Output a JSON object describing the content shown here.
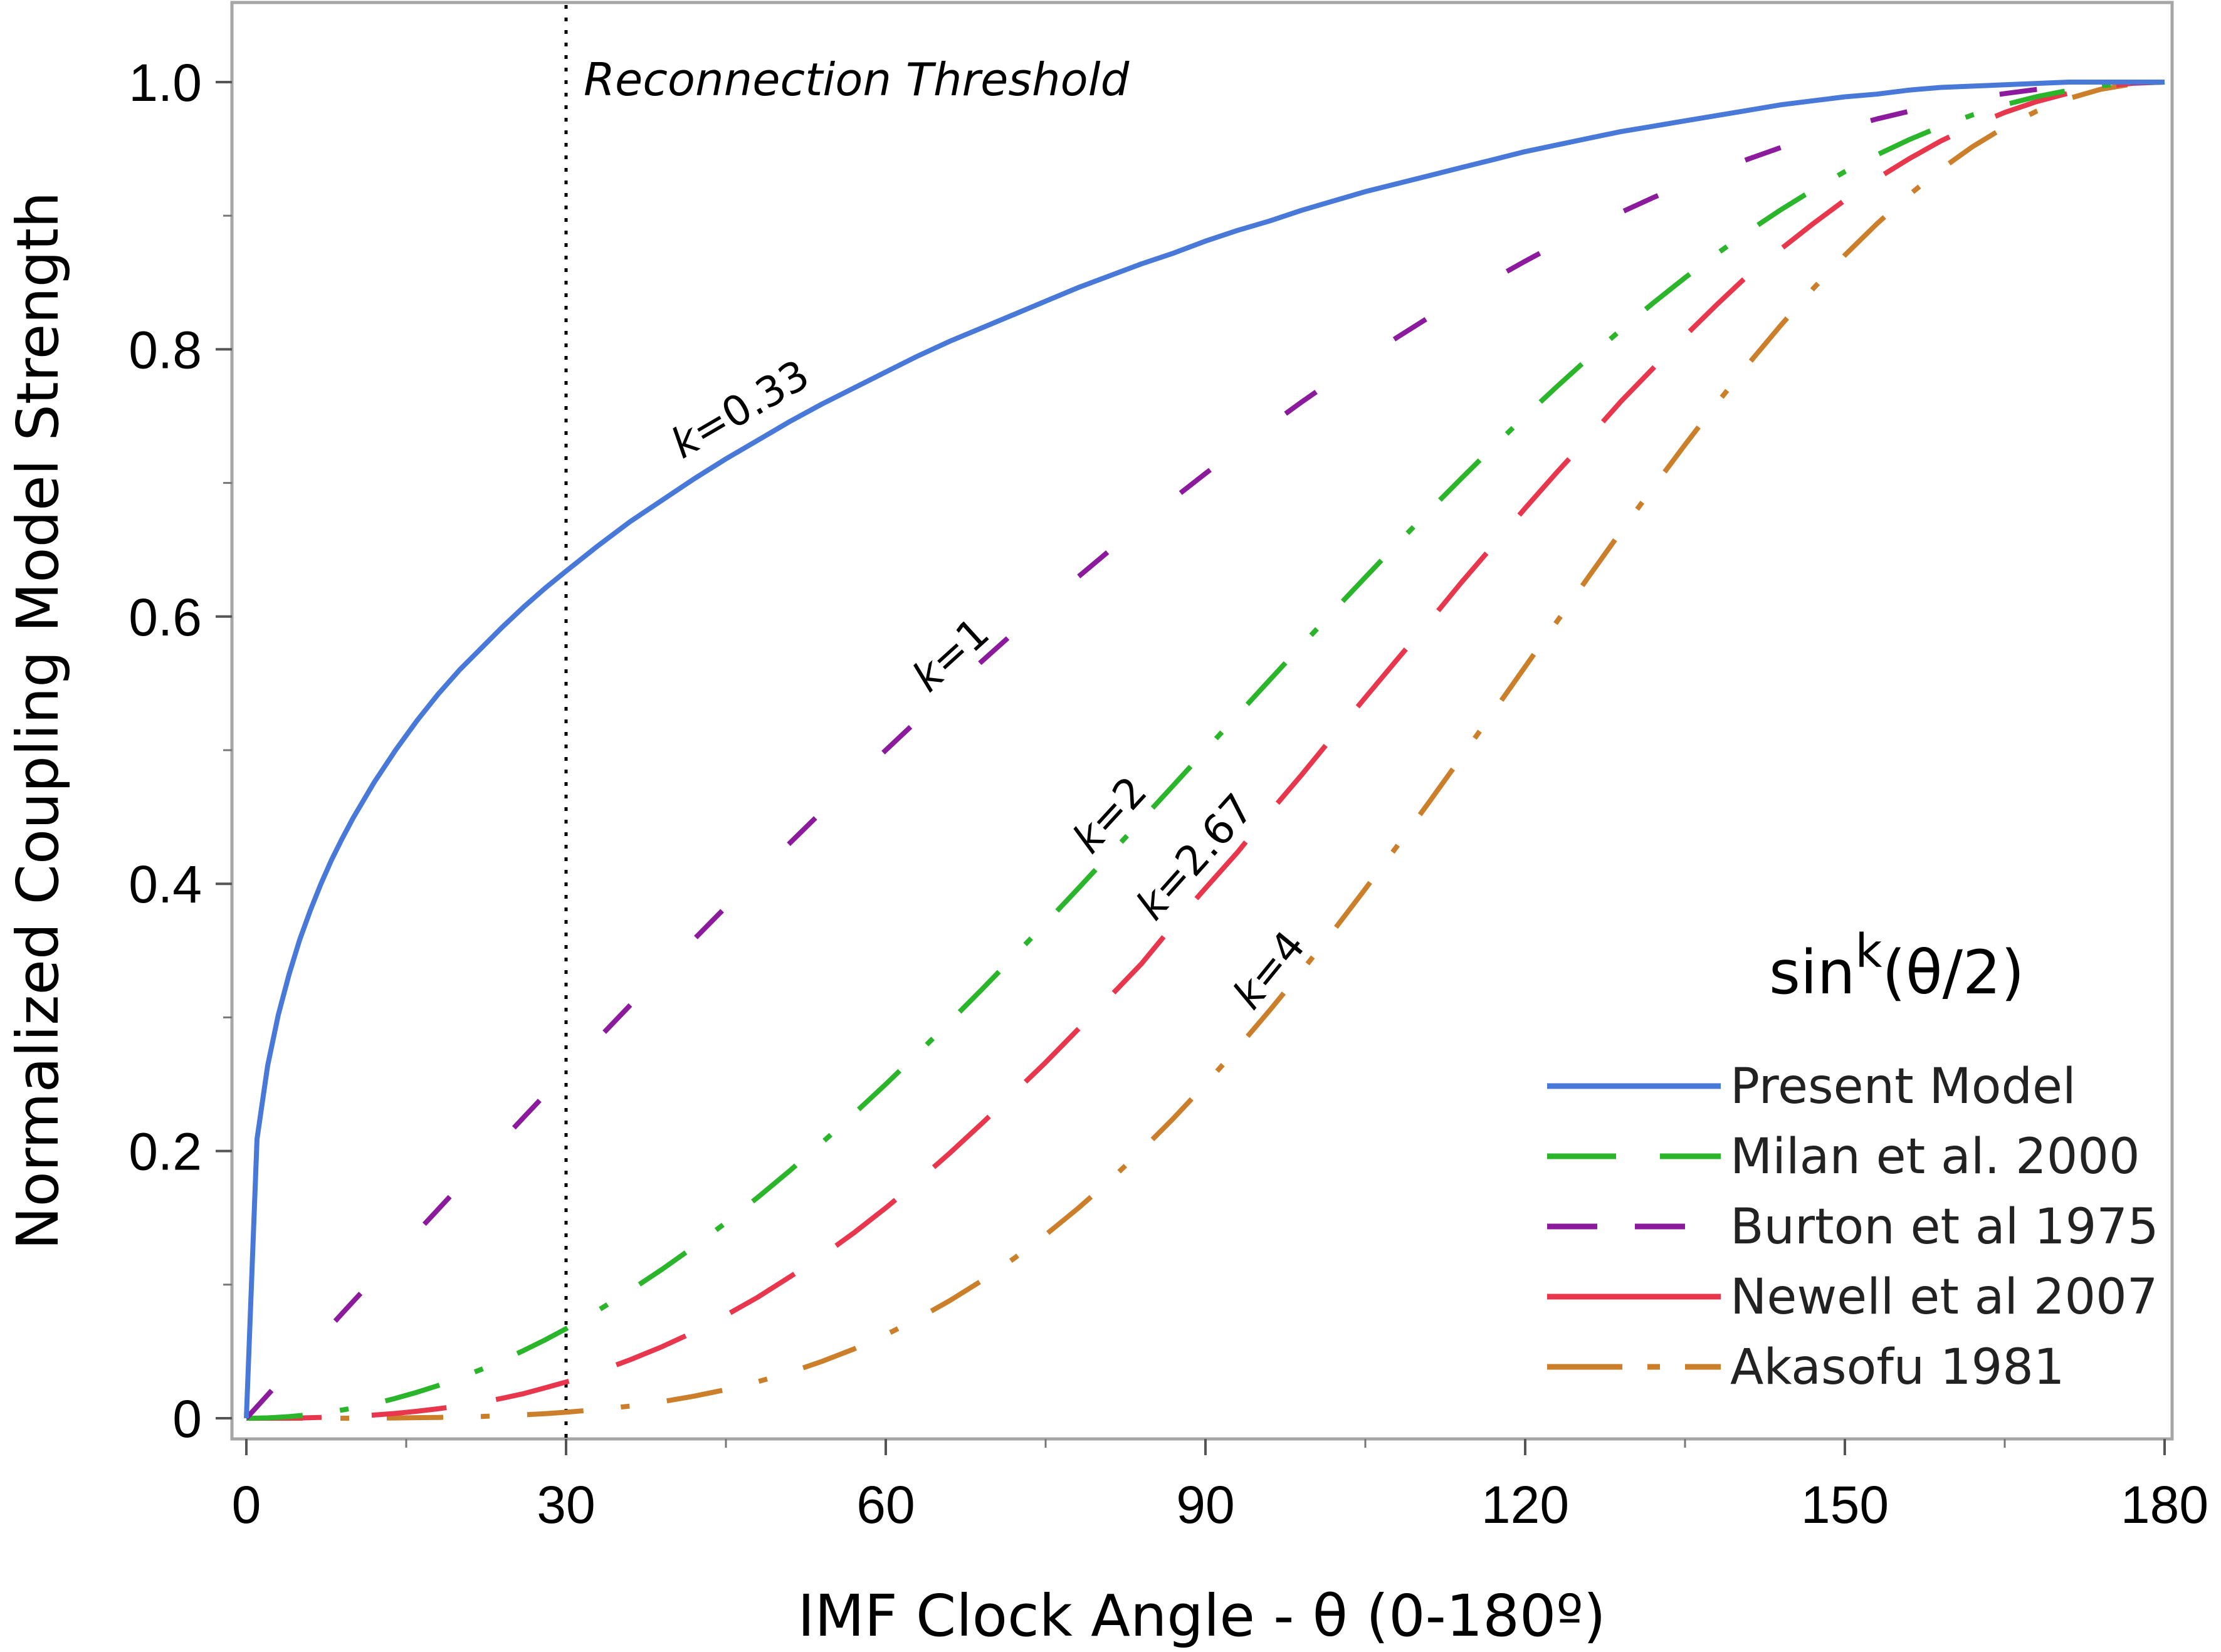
{
  "chart_data": {
    "type": "line",
    "xlabel": "IMF Clock Angle - θ (0-180º)",
    "ylabel": "Normalized Coupling Model Strength",
    "xlim": [
      0,
      180
    ],
    "ylim": [
      0,
      1.0
    ],
    "x_ticks": [
      "0",
      "30",
      "60",
      "90",
      "120",
      "150",
      "180"
    ],
    "y_ticks": [
      "0",
      "0.2",
      "0.4",
      "0.6",
      "0.8",
      "1.0"
    ],
    "grid": false,
    "legend": {
      "title_base": "sin",
      "title_superscript": "k",
      "title_tail": "(θ/2)",
      "position": "lower-right"
    },
    "annotation": {
      "text": "Reconnection Threshold",
      "x": 30
    },
    "x": [
      0,
      1,
      2,
      3,
      4,
      5,
      6,
      7,
      8,
      9,
      10,
      12,
      14,
      16,
      18,
      20,
      22,
      24,
      26,
      28,
      30,
      33,
      36,
      39,
      42,
      45,
      48,
      51,
      54,
      57,
      60,
      63,
      66,
      69,
      72,
      75,
      78,
      81,
      84,
      87,
      90,
      93,
      96,
      99,
      102,
      105,
      108,
      111,
      114,
      117,
      120,
      123,
      126,
      129,
      132,
      135,
      138,
      141,
      144,
      147,
      150,
      153,
      156,
      159,
      162,
      165,
      168,
      171,
      174,
      177,
      180
    ],
    "series": [
      {
        "name": "Present Model",
        "k": 0.33,
        "label": "k=0.33",
        "color": "#4878d8",
        "style": "solid",
        "values": [
          0,
          0.209,
          0.264,
          0.302,
          0.332,
          0.358,
          0.38,
          0.4,
          0.418,
          0.434,
          0.449,
          0.476,
          0.5,
          0.522,
          0.542,
          0.56,
          0.576,
          0.592,
          0.607,
          0.621,
          0.634,
          0.653,
          0.671,
          0.687,
          0.703,
          0.718,
          0.732,
          0.746,
          0.759,
          0.771,
          0.783,
          0.795,
          0.806,
          0.816,
          0.826,
          0.836,
          0.846,
          0.855,
          0.864,
          0.872,
          0.881,
          0.889,
          0.896,
          0.904,
          0.911,
          0.918,
          0.924,
          0.93,
          0.936,
          0.942,
          0.948,
          0.953,
          0.958,
          0.963,
          0.967,
          0.971,
          0.975,
          0.979,
          0.983,
          0.986,
          0.989,
          0.991,
          0.994,
          0.996,
          0.997,
          0.998,
          0.999,
          1.0,
          1.0,
          1.0,
          1.0
        ]
      },
      {
        "name": "Milan et al. 2000",
        "k": 2,
        "label": "k=2",
        "color": "#2ab52a",
        "style": "dash-dot",
        "values": [
          0,
          0.0001,
          0.0003,
          0.0007,
          0.0012,
          0.0019,
          0.0027,
          0.0037,
          0.0049,
          0.0062,
          0.0076,
          0.0109,
          0.0149,
          0.0194,
          0.0245,
          0.0302,
          0.0364,
          0.0432,
          0.0506,
          0.0585,
          0.067,
          0.0807,
          0.0955,
          0.1114,
          0.1284,
          0.1464,
          0.1654,
          0.1853,
          0.2061,
          0.2277,
          0.25,
          0.273,
          0.2967,
          0.3208,
          0.3455,
          0.3706,
          0.396,
          0.4217,
          0.4477,
          0.4738,
          0.5,
          0.5262,
          0.5523,
          0.5782,
          0.604,
          0.6294,
          0.6545,
          0.6792,
          0.7033,
          0.727,
          0.75,
          0.7723,
          0.7939,
          0.8147,
          0.8346,
          0.8536,
          0.8716,
          0.8886,
          0.9045,
          0.9193,
          0.933,
          0.9455,
          0.9568,
          0.9668,
          0.9755,
          0.983,
          0.9891,
          0.9938,
          0.9973,
          0.9993,
          1.0
        ]
      },
      {
        "name": "Burton et al 1975",
        "k": 1,
        "label": "k=1",
        "color": "#8b1a9c",
        "style": "dashed",
        "values": [
          0,
          0.0087,
          0.0175,
          0.0262,
          0.0349,
          0.0436,
          0.0523,
          0.061,
          0.0698,
          0.0785,
          0.0872,
          0.1045,
          0.1219,
          0.1392,
          0.1564,
          0.1736,
          0.1908,
          0.2079,
          0.225,
          0.2419,
          0.2588,
          0.284,
          0.309,
          0.3338,
          0.3584,
          0.3827,
          0.4067,
          0.4305,
          0.454,
          0.4772,
          0.5,
          0.5225,
          0.5446,
          0.5664,
          0.5878,
          0.6088,
          0.6293,
          0.6494,
          0.6691,
          0.6884,
          0.7071,
          0.7254,
          0.7431,
          0.7604,
          0.7771,
          0.7934,
          0.809,
          0.8241,
          0.8387,
          0.8526,
          0.866,
          0.8788,
          0.891,
          0.9026,
          0.9135,
          0.9239,
          0.9336,
          0.9426,
          0.9511,
          0.9588,
          0.9659,
          0.9724,
          0.9781,
          0.9833,
          0.9877,
          0.9914,
          0.9945,
          0.9969,
          0.9986,
          0.9997,
          1.0
        ]
      },
      {
        "name": "Newell et al 2007",
        "k": 2.67,
        "label": "k=2.67",
        "color": "#e8364c",
        "style": "long-dash",
        "values": [
          0,
          0.0,
          0.0,
          0.0001,
          0.0001,
          0.0002,
          0.0004,
          0.0006,
          0.0008,
          0.0011,
          0.0015,
          0.0024,
          0.0036,
          0.0052,
          0.0071,
          0.0093,
          0.0119,
          0.0149,
          0.0184,
          0.0227,
          0.0271,
          0.0348,
          0.0437,
          0.0535,
          0.0645,
          0.0771,
          0.0906,
          0.1058,
          0.1214,
          0.1387,
          0.1574,
          0.1774,
          0.1984,
          0.2205,
          0.2432,
          0.2663,
          0.2907,
          0.3153,
          0.3402,
          0.3693,
          0.3967,
          0.4235,
          0.4532,
          0.4813,
          0.5106,
          0.5394,
          0.568,
          0.5962,
          0.6254,
          0.6532,
          0.6811,
          0.7082,
          0.7342,
          0.7611,
          0.7858,
          0.8101,
          0.8336,
          0.8561,
          0.8751,
          0.8939,
          0.9117,
          0.9277,
          0.9425,
          0.9559,
          0.9673,
          0.9773,
          0.9854,
          0.9917,
          0.9964,
          0.9991,
          1.0
        ]
      },
      {
        "name": "Akasofu 1981",
        "k": 4,
        "label": "k=4",
        "color": "#cc7f2a",
        "style": "dash-dot",
        "values": [
          0,
          0.0,
          0.0,
          0.0,
          0.0,
          0.0,
          0.0,
          0.0,
          0.0,
          0.0,
          0.0001,
          0.0001,
          0.0002,
          0.0004,
          0.0006,
          0.0009,
          0.0013,
          0.0019,
          0.0026,
          0.0034,
          0.0045,
          0.0065,
          0.0091,
          0.0124,
          0.0165,
          0.0214,
          0.0274,
          0.0343,
          0.0425,
          0.0518,
          0.0625,
          0.0745,
          0.088,
          0.1029,
          0.1194,
          0.1373,
          0.1568,
          0.1778,
          0.2004,
          0.2245,
          0.25,
          0.2769,
          0.305,
          0.3343,
          0.3648,
          0.3962,
          0.4284,
          0.4613,
          0.4946,
          0.5285,
          0.5625,
          0.5965,
          0.6303,
          0.6638,
          0.6966,
          0.7286,
          0.7597,
          0.7896,
          0.8181,
          0.8452,
          0.8705,
          0.8939,
          0.9154,
          0.9347,
          0.9518,
          0.9663,
          0.9783,
          0.9877,
          0.9946,
          0.9986,
          1.0
        ]
      }
    ]
  }
}
